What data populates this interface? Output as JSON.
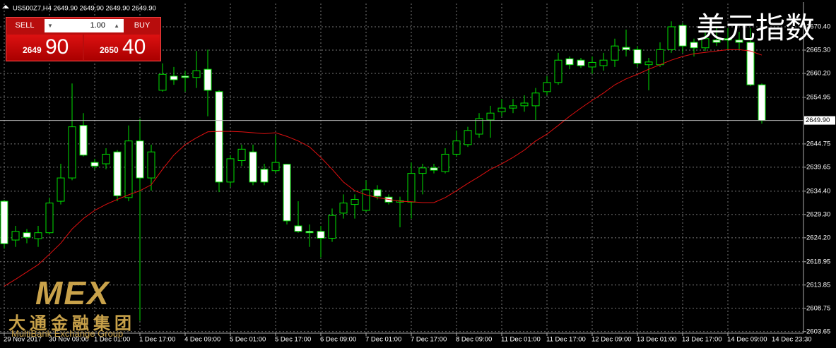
{
  "header": {
    "symbol_info": "US500Z7,H4  2649.90 2649.90 2649.90 2649.90"
  },
  "trade_panel": {
    "sell": "SELL",
    "buy": "BUY",
    "lot": "1.00",
    "bid_big": "2649",
    "bid_small": "90",
    "ask_big": "2650",
    "ask_small": "40"
  },
  "overlay": {
    "title": "美元指数",
    "logo": "MEX",
    "company": "大通金融集团",
    "company_en": "MultiBank Exchange Group"
  },
  "chart_data": {
    "type": "candlestick",
    "categories": [
      "29 Nov 2017",
      null,
      null,
      null,
      "30 Nov 09:00",
      null,
      null,
      null,
      "1 Dec 01:00",
      null,
      null,
      null,
      "1 Dec 17:00",
      null,
      null,
      null,
      "4 Dec 09:00",
      null,
      null,
      null,
      "5 Dec 01:00",
      null,
      null,
      null,
      "5 Dec 17:00",
      null,
      null,
      null,
      "6 Dec 09:00",
      null,
      null,
      null,
      "7 Dec 01:00",
      null,
      null,
      null,
      "7 Dec 17:00",
      null,
      null,
      null,
      "8 Dec 09:00",
      null,
      null,
      null,
      "11 Dec 01:00",
      null,
      null,
      null,
      "11 Dec 17:00",
      null,
      null,
      null,
      "12 Dec 09:00",
      null,
      null,
      null,
      "13 Dec 01:00",
      null,
      null,
      null,
      "13 Dec 17:00",
      null,
      null,
      null,
      "14 Dec 09:00",
      null,
      null,
      null
    ],
    "open": [
      2632.2,
      2623.7,
      2625.3,
      2624.0,
      2625.3,
      2632.2,
      2637.3,
      2648.8,
      2640.7,
      2640.4,
      2643.0,
      2633.0,
      2645.4,
      2637.3,
      2656.5,
      2659.6,
      2659.6,
      2659.3,
      2661.1,
      2656.2,
      2636.4,
      2641.1,
      2643.0,
      2639.2,
      2638.9,
      2640.3,
      2626.8,
      2625.6,
      2625.6,
      2624.1,
      2629.6,
      2631.5,
      2630.2,
      2634.7,
      2633.1,
      2632.0,
      2632.0,
      2638.3,
      2639.5,
      2638.7,
      2642.5,
      2644.6,
      2646.9,
      2650.0,
      2651.8,
      2652.6,
      2653.1,
      2653.1,
      2656.2,
      2658.2,
      2663.4,
      2663.1,
      2661.6,
      2661.9,
      2663.1,
      2665.9,
      2665.4,
      2662.1,
      2662.1,
      2665.4,
      2670.7,
      2667.0,
      2665.8,
      2667.5,
      2667.8,
      2667.5,
      2667.0,
      2657.7
    ],
    "high": [
      2632.5,
      2626.8,
      2626.1,
      2626.8,
      2633.0,
      2640.4,
      2658.0,
      2651.5,
      2641.5,
      2643.8,
      2643.4,
      2648.8,
      2650.3,
      2644.6,
      2662.4,
      2661.6,
      2660.8,
      2665.1,
      2665.4,
      2656.5,
      2642.3,
      2644.6,
      2644.6,
      2640.4,
      2646.6,
      2640.4,
      2632.2,
      2627.1,
      2626.8,
      2630.6,
      2633.7,
      2633.7,
      2636.8,
      2635.7,
      2633.7,
      2633.2,
      2640.7,
      2640.4,
      2640.4,
      2643.8,
      2647.7,
      2648.5,
      2651.5,
      2653.1,
      2654.6,
      2654.6,
      2655.4,
      2657.0,
      2659.6,
      2664.7,
      2663.9,
      2663.6,
      2663.9,
      2664.7,
      2667.8,
      2669.8,
      2666.2,
      2663.6,
      2667.0,
      2671.6,
      2671.2,
      2667.8,
      2669.3,
      2670.1,
      2670.1,
      2669.3,
      2670.1,
      2658.0
    ],
    "low": [
      2621.8,
      2622.2,
      2623.0,
      2622.2,
      2624.9,
      2631.5,
      2636.8,
      2642.0,
      2639.2,
      2639.2,
      2632.2,
      2632.2,
      2606.0,
      2634.5,
      2656.2,
      2657.7,
      2656.2,
      2657.0,
      2650.8,
      2634.2,
      2635.3,
      2639.9,
      2635.7,
      2635.7,
      2638.4,
      2627.1,
      2625.3,
      2622.2,
      2619.9,
      2623.3,
      2628.4,
      2628.4,
      2629.9,
      2632.6,
      2631.5,
      2626.5,
      2628.4,
      2633.7,
      2638.3,
      2638.3,
      2641.9,
      2644.1,
      2646.1,
      2646.1,
      2650.8,
      2651.5,
      2651.8,
      2650.0,
      2655.4,
      2657.7,
      2661.1,
      2661.4,
      2660.1,
      2660.8,
      2661.6,
      2663.9,
      2661.6,
      2656.5,
      2661.6,
      2664.7,
      2664.7,
      2663.9,
      2665.1,
      2666.2,
      2665.4,
      2665.4,
      2657.4,
      2649.2
    ],
    "close": [
      2622.9,
      2625.6,
      2624.3,
      2625.3,
      2631.8,
      2637.3,
      2648.5,
      2642.3,
      2639.9,
      2642.5,
      2633.4,
      2645.4,
      2637.3,
      2643.0,
      2660.0,
      2658.8,
      2659.3,
      2660.8,
      2656.5,
      2636.4,
      2641.5,
      2643.6,
      2636.4,
      2636.4,
      2640.7,
      2627.9,
      2625.6,
      2625.3,
      2624.1,
      2629.1,
      2631.8,
      2632.6,
      2634.7,
      2633.3,
      2632.0,
      2632.3,
      2638.3,
      2639.5,
      2639.0,
      2642.5,
      2645.4,
      2647.7,
      2650.3,
      2651.5,
      2652.6,
      2653.1,
      2653.7,
      2655.9,
      2658.2,
      2663.1,
      2662.1,
      2661.9,
      2662.6,
      2663.1,
      2666.2,
      2665.4,
      2662.4,
      2662.7,
      2665.4,
      2670.4,
      2666.2,
      2665.8,
      2667.8,
      2667.0,
      2667.5,
      2667.0,
      2657.7,
      2649.9
    ],
    "moving_average": {
      "color": "#e01010",
      "values": [
        2613.6,
        2615.1,
        2616.7,
        2618.3,
        2620.6,
        2623.0,
        2626.1,
        2628.4,
        2630.2,
        2631.5,
        2632.6,
        2633.6,
        2634.5,
        2635.8,
        2639.2,
        2642.3,
        2644.6,
        2646.1,
        2647.4,
        2647.5,
        2647.5,
        2647.4,
        2647.2,
        2647.0,
        2647.2,
        2646.4,
        2645.4,
        2644.1,
        2641.8,
        2639.2,
        2636.4,
        2634.5,
        2633.6,
        2633.0,
        2632.6,
        2632.2,
        2632.1,
        2631.9,
        2631.9,
        2633.0,
        2634.5,
        2636.1,
        2637.6,
        2639.2,
        2640.4,
        2641.8,
        2643.4,
        2645.4,
        2646.9,
        2648.8,
        2650.8,
        2652.6,
        2654.3,
        2655.9,
        2657.7,
        2659.0,
        2660.0,
        2661.1,
        2662.1,
        2663.1,
        2663.9,
        2664.5,
        2664.8,
        2665.1,
        2665.4,
        2665.4,
        2665.1,
        2664.2
      ]
    },
    "bull_color": "#000000",
    "bear_color": "#ffffff",
    "wick_color": "#00e000",
    "ylim": [
      2603.3,
      2675.5
    ],
    "yticks": [
      {
        "value": 2603.65,
        "label": "2603.65"
      },
      {
        "value": 2608.75,
        "label": "2608.75"
      },
      {
        "value": 2613.85,
        "label": "2613.85"
      },
      {
        "value": 2618.95,
        "label": "2618.95"
      },
      {
        "value": 2624.2,
        "label": "2624.20"
      },
      {
        "value": 2629.3,
        "label": "2629.30"
      },
      {
        "value": 2634.4,
        "label": "2634.40"
      },
      {
        "value": 2639.65,
        "label": "2639.65"
      },
      {
        "value": 2644.75,
        "label": "2644.75"
      },
      {
        "value": 2654.95,
        "label": "2654.95"
      },
      {
        "value": 2660.2,
        "label": "2660.20"
      },
      {
        "value": 2665.3,
        "label": "2665.30"
      },
      {
        "value": 2670.4,
        "label": "2670.40"
      }
    ],
    "current_price": {
      "value": 2649.9,
      "label": "2649.90"
    },
    "time_label": "14 Dec 23:30",
    "grid": true
  }
}
